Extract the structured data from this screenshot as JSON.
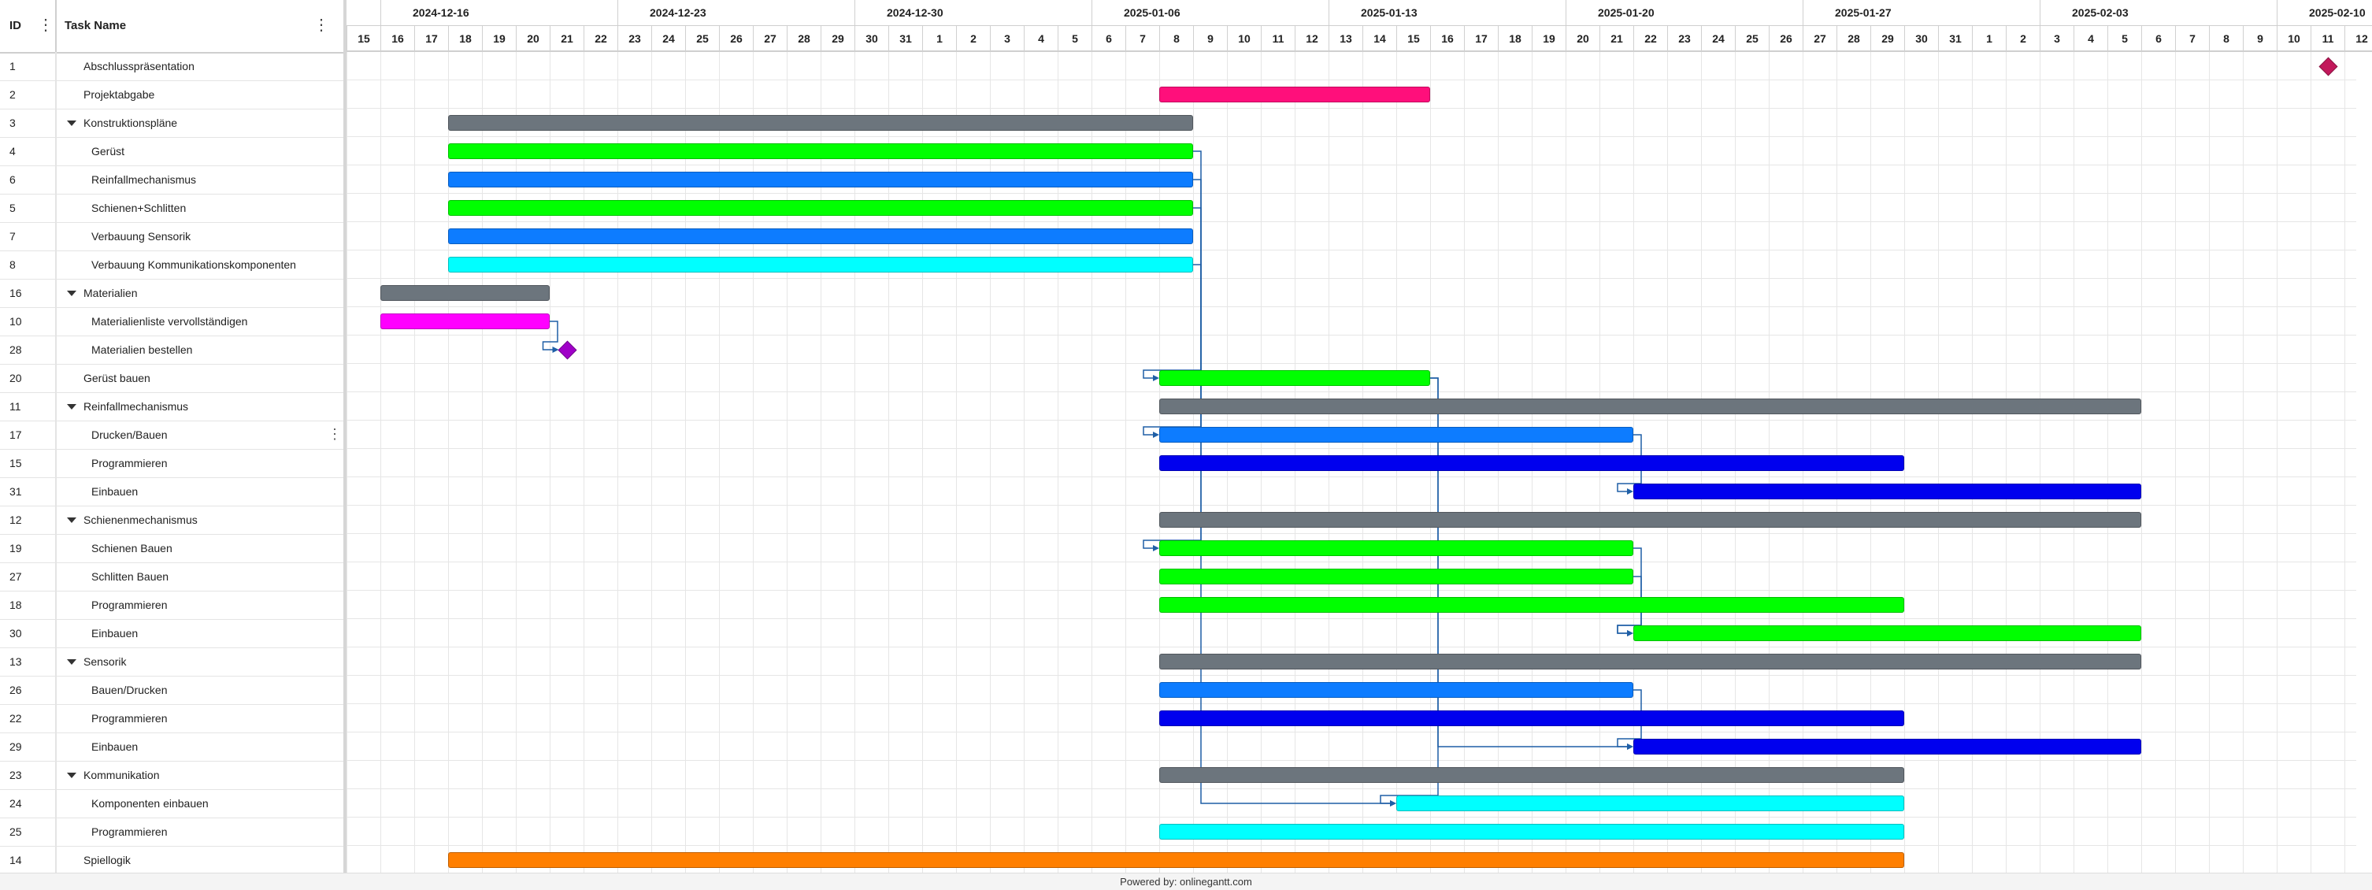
{
  "grid": {
    "headers": {
      "id": "ID",
      "name": "Task Name"
    },
    "rows": [
      {
        "id": "1",
        "name": "Abschlusspräsentation",
        "level": 1,
        "parent": false
      },
      {
        "id": "2",
        "name": "Projektabgabe",
        "level": 1,
        "parent": false
      },
      {
        "id": "3",
        "name": "Konstruktionspläne",
        "level": 1,
        "parent": true
      },
      {
        "id": "4",
        "name": "Gerüst",
        "level": 2,
        "parent": false
      },
      {
        "id": "6",
        "name": "Reinfallmechanismus",
        "level": 2,
        "parent": false
      },
      {
        "id": "5",
        "name": "Schienen+Schlitten",
        "level": 2,
        "parent": false
      },
      {
        "id": "7",
        "name": "Verbauung Sensorik",
        "level": 2,
        "parent": false
      },
      {
        "id": "8",
        "name": "Verbauung Kommunikationskomponenten",
        "level": 2,
        "parent": false
      },
      {
        "id": "16",
        "name": "Materialien",
        "level": 1,
        "parent": true
      },
      {
        "id": "10",
        "name": "Materialienliste vervollständigen",
        "level": 2,
        "parent": false
      },
      {
        "id": "28",
        "name": "Materialien bestellen",
        "level": 2,
        "parent": false
      },
      {
        "id": "20",
        "name": "Gerüst bauen",
        "level": 1,
        "parent": false
      },
      {
        "id": "11",
        "name": "Reinfallmechanismus",
        "level": 1,
        "parent": true
      },
      {
        "id": "17",
        "name": "Drucken/Bauen",
        "level": 2,
        "parent": false
      },
      {
        "id": "15",
        "name": "Programmieren",
        "level": 2,
        "parent": false
      },
      {
        "id": "31",
        "name": "Einbauen",
        "level": 2,
        "parent": false
      },
      {
        "id": "12",
        "name": "Schienenmechanismus",
        "level": 1,
        "parent": true
      },
      {
        "id": "19",
        "name": "Schienen Bauen",
        "level": 2,
        "parent": false
      },
      {
        "id": "27",
        "name": "Schlitten Bauen",
        "level": 2,
        "parent": false
      },
      {
        "id": "18",
        "name": "Programmieren",
        "level": 2,
        "parent": false
      },
      {
        "id": "30",
        "name": "Einbauen",
        "level": 2,
        "parent": false
      },
      {
        "id": "13",
        "name": "Sensorik",
        "level": 1,
        "parent": true
      },
      {
        "id": "26",
        "name": "Bauen/Drucken",
        "level": 2,
        "parent": false
      },
      {
        "id": "22",
        "name": "Programmieren",
        "level": 2,
        "parent": false
      },
      {
        "id": "29",
        "name": "Einbauen",
        "level": 2,
        "parent": false
      },
      {
        "id": "23",
        "name": "Kommunikation",
        "level": 1,
        "parent": true
      },
      {
        "id": "24",
        "name": "Komponenten einbauen",
        "level": 2,
        "parent": false
      },
      {
        "id": "25",
        "name": "Programmieren",
        "level": 2,
        "parent": false
      },
      {
        "id": "14",
        "name": "Spiellogik",
        "level": 1,
        "parent": false
      }
    ]
  },
  "timeline": {
    "weeks": [
      "2024-12-16",
      "2024-12-23",
      "2024-12-30",
      "2025-01-06",
      "2025-01-13",
      "2025-01-20",
      "2025-01-27",
      "2025-02-03",
      "2025-02-10"
    ],
    "days": [
      "15",
      "16",
      "17",
      "18",
      "19",
      "20",
      "21",
      "22",
      "23",
      "24",
      "25",
      "26",
      "27",
      "28",
      "29",
      "30",
      "31",
      "1",
      "2",
      "3",
      "4",
      "5",
      "6",
      "7",
      "8",
      "9",
      "10",
      "11",
      "12",
      "13",
      "14",
      "15",
      "16",
      "17",
      "18",
      "19",
      "20",
      "21",
      "22",
      "23",
      "24",
      "25",
      "26",
      "27",
      "28",
      "29",
      "30",
      "31",
      "1",
      "2",
      "3",
      "4",
      "5",
      "6",
      "7",
      "8",
      "9",
      "10",
      "11",
      "12"
    ],
    "first_day": "2024-12-15"
  },
  "tasks": [
    {
      "id": "1",
      "type": "milestone",
      "date": "2025-02-11",
      "color": "#c2185b"
    },
    {
      "id": "2",
      "type": "task",
      "start": "2025-01-08",
      "end": "2025-01-15",
      "color": "#ff0f7b"
    },
    {
      "id": "3",
      "type": "summary",
      "start": "2024-12-18",
      "end": "2025-01-08",
      "color": "#6c757d"
    },
    {
      "id": "4",
      "type": "task",
      "start": "2024-12-18",
      "end": "2025-01-08",
      "color": "#00ff00"
    },
    {
      "id": "6",
      "type": "task",
      "start": "2024-12-18",
      "end": "2025-01-08",
      "color": "#0d7cff"
    },
    {
      "id": "5",
      "type": "task",
      "start": "2024-12-18",
      "end": "2025-01-08",
      "color": "#00ff00"
    },
    {
      "id": "7",
      "type": "task",
      "start": "2024-12-18",
      "end": "2025-01-08",
      "color": "#0d7cff"
    },
    {
      "id": "8",
      "type": "task",
      "start": "2024-12-18",
      "end": "2025-01-08",
      "color": "#00ffff"
    },
    {
      "id": "16",
      "type": "summary",
      "start": "2024-12-16",
      "end": "2024-12-20",
      "color": "#6c757d"
    },
    {
      "id": "10",
      "type": "task",
      "start": "2024-12-16",
      "end": "2024-12-20",
      "color": "#ff00ff"
    },
    {
      "id": "28",
      "type": "milestone",
      "date": "2024-12-21",
      "color": "#a000c8"
    },
    {
      "id": "20",
      "type": "task",
      "start": "2025-01-08",
      "end": "2025-01-15",
      "color": "#00ff00"
    },
    {
      "id": "11",
      "type": "summary",
      "start": "2025-01-08",
      "end": "2025-02-05",
      "color": "#6c757d"
    },
    {
      "id": "17",
      "type": "task",
      "start": "2025-01-08",
      "end": "2025-01-21",
      "color": "#0d7cff"
    },
    {
      "id": "15",
      "type": "task",
      "start": "2025-01-08",
      "end": "2025-01-29",
      "color": "#0000ee"
    },
    {
      "id": "31",
      "type": "task",
      "start": "2025-01-22",
      "end": "2025-02-05",
      "color": "#0000ee"
    },
    {
      "id": "12",
      "type": "summary",
      "start": "2025-01-08",
      "end": "2025-02-05",
      "color": "#6c757d"
    },
    {
      "id": "19",
      "type": "task",
      "start": "2025-01-08",
      "end": "2025-01-21",
      "color": "#00ff00"
    },
    {
      "id": "27",
      "type": "task",
      "start": "2025-01-08",
      "end": "2025-01-21",
      "color": "#00ff00"
    },
    {
      "id": "18",
      "type": "task",
      "start": "2025-01-08",
      "end": "2025-01-29",
      "color": "#00ff00"
    },
    {
      "id": "30",
      "type": "task",
      "start": "2025-01-22",
      "end": "2025-02-05",
      "color": "#00ff00"
    },
    {
      "id": "13",
      "type": "summary",
      "start": "2025-01-08",
      "end": "2025-02-05",
      "color": "#6c757d"
    },
    {
      "id": "26",
      "type": "task",
      "start": "2025-01-08",
      "end": "2025-01-21",
      "color": "#0d7cff"
    },
    {
      "id": "22",
      "type": "task",
      "start": "2025-01-08",
      "end": "2025-01-29",
      "color": "#0000ee"
    },
    {
      "id": "29",
      "type": "task",
      "start": "2025-01-22",
      "end": "2025-02-05",
      "color": "#0000ee"
    },
    {
      "id": "23",
      "type": "summary",
      "start": "2025-01-08",
      "end": "2025-01-29",
      "color": "#6c757d"
    },
    {
      "id": "24",
      "type": "task",
      "start": "2025-01-15",
      "end": "2025-01-29",
      "color": "#00ffff"
    },
    {
      "id": "25",
      "type": "task",
      "start": "2025-01-08",
      "end": "2025-01-29",
      "color": "#00ffff"
    },
    {
      "id": "14",
      "type": "task",
      "start": "2024-12-18",
      "end": "2025-01-29",
      "color": "#ff7f00"
    }
  ],
  "links": [
    {
      "from": "10",
      "to": "28"
    },
    {
      "from": "4",
      "to": "20"
    },
    {
      "from": "6",
      "to": "17"
    },
    {
      "from": "5",
      "to": "19"
    },
    {
      "from": "8",
      "to": "24"
    },
    {
      "from": "20",
      "to": "24"
    },
    {
      "from": "17",
      "to": "31"
    },
    {
      "from": "19",
      "to": "30"
    },
    {
      "from": "27",
      "to": "30"
    },
    {
      "from": "26",
      "to": "29"
    },
    {
      "from": "20",
      "to": "29"
    }
  ],
  "link_color": "#1f5fa6",
  "footer": {
    "text": "Powered by: onlinegantt.com"
  }
}
